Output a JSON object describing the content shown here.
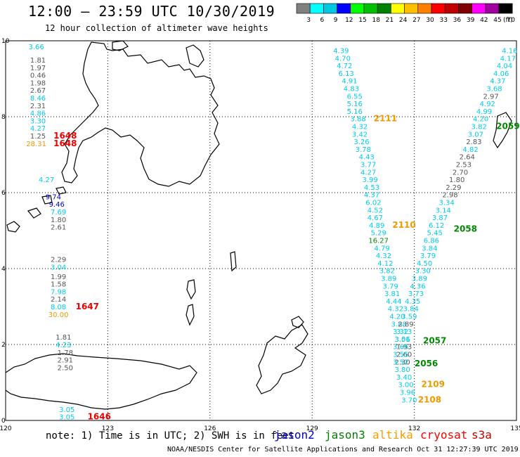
{
  "title": "12:00 – 23:59 UTC 10/30/2019",
  "subtitle": "12 hour collection of altimeter wave heights",
  "legend": {
    "unit": "(ft)",
    "ticks": [
      "3",
      "6",
      "9",
      "12",
      "15",
      "18",
      "21",
      "24",
      "27",
      "30",
      "33",
      "36",
      "39",
      "42",
      "45",
      "70"
    ],
    "colors": [
      "#808080",
      "#00ffff",
      "#00c8e0",
      "#0000ff",
      "#00ff00",
      "#00c000",
      "#008000",
      "#ffff00",
      "#ffc000",
      "#ff8000",
      "#ff0000",
      "#c00000",
      "#800000",
      "#ff00ff",
      "#a000a0",
      "#000000"
    ]
  },
  "axes": {
    "x_ticks": [
      "120",
      "123",
      "126",
      "129",
      "132",
      "135"
    ],
    "y_ticks": [
      "10",
      "8",
      "6",
      "4",
      "2",
      "0"
    ]
  },
  "note": "note:  1) Time is in UTC; 2) SWH is in feet",
  "satellites": [
    {
      "name": "jason2",
      "color": "#0000cc"
    },
    {
      "name": "jason3",
      "color": "#008000"
    },
    {
      "name": "altika",
      "color": "#ff9900"
    },
    {
      "name": "cryosat",
      "color": "#ff0000"
    },
    {
      "name": "s3a",
      "color": "#cc0000"
    }
  ],
  "credit": "NOAA/NESDIS Center for Satellite Applications and Research    Oct 31 12:27:39 UTC 2019",
  "track_colors": {
    "cyan": "#00ccee",
    "gray": "#555555",
    "blue": "#0000cc",
    "orange": "#ee9900",
    "red": "#ee0000",
    "green": "#008800",
    "darkgray": "#444444"
  },
  "readings": [
    {
      "v": "3.66",
      "c": "cyan",
      "lon": 120.9,
      "lat": 9.85
    },
    {
      "v": "1.81",
      "c": "gray",
      "lon": 120.95,
      "lat": 9.5
    },
    {
      "v": "1.97",
      "c": "gray",
      "lon": 120.95,
      "lat": 9.3
    },
    {
      "v": "0.46",
      "c": "gray",
      "lon": 120.95,
      "lat": 9.1
    },
    {
      "v": "1.98",
      "c": "gray",
      "lon": 120.95,
      "lat": 8.9
    },
    {
      "v": "2.67",
      "c": "gray",
      "lon": 120.95,
      "lat": 8.7
    },
    {
      "v": "8.46",
      "c": "cyan",
      "lon": 120.95,
      "lat": 8.5
    },
    {
      "v": "2.31",
      "c": "gray",
      "lon": 120.95,
      "lat": 8.3
    },
    {
      "v": "4.86",
      "c": "cyan",
      "lon": 120.95,
      "lat": 8.1
    },
    {
      "v": "3.30",
      "c": "cyan",
      "lon": 120.95,
      "lat": 7.9
    },
    {
      "v": "4.27",
      "c": "cyan",
      "lon": 120.95,
      "lat": 7.7
    },
    {
      "v": "1.25",
      "c": "gray",
      "lon": 120.95,
      "lat": 7.5
    },
    {
      "v": "28.31",
      "c": "orange",
      "lon": 120.9,
      "lat": 7.3
    },
    {
      "v": "1648",
      "c": "red",
      "lon": 121.75,
      "lat": 7.5,
      "bold": true
    },
    {
      "v": "1648",
      "c": "red",
      "lon": 121.75,
      "lat": 7.3,
      "bold": true
    },
    {
      "v": "4.27",
      "c": "cyan",
      "lon": 121.2,
      "lat": 6.35
    },
    {
      "v": "9.74",
      "c": "blue",
      "lon": 121.4,
      "lat": 5.9
    },
    {
      "v": "9.46",
      "c": "blue",
      "lon": 121.5,
      "lat": 5.7
    },
    {
      "v": "7.69",
      "c": "cyan",
      "lon": 121.55,
      "lat": 5.5
    },
    {
      "v": "1.80",
      "c": "gray",
      "lon": 121.55,
      "lat": 5.3
    },
    {
      "v": "2.61",
      "c": "gray",
      "lon": 121.55,
      "lat": 5.1
    },
    {
      "v": "2.29",
      "c": "gray",
      "lon": 121.55,
      "lat": 4.25
    },
    {
      "v": "3.04",
      "c": "cyan",
      "lon": 121.55,
      "lat": 4.05
    },
    {
      "v": "1.99",
      "c": "gray",
      "lon": 121.55,
      "lat": 3.8
    },
    {
      "v": "1.58",
      "c": "gray",
      "lon": 121.55,
      "lat": 3.6
    },
    {
      "v": "7.98",
      "c": "cyan",
      "lon": 121.55,
      "lat": 3.4
    },
    {
      "v": "2.14",
      "c": "gray",
      "lon": 121.55,
      "lat": 3.2
    },
    {
      "v": "8.08",
      "c": "cyan",
      "lon": 121.55,
      "lat": 3.0
    },
    {
      "v": "30.00",
      "c": "orange",
      "lon": 121.55,
      "lat": 2.8
    },
    {
      "v": "1647",
      "c": "red",
      "lon": 122.4,
      "lat": 3.0,
      "bold": true
    },
    {
      "v": "1.81",
      "c": "gray",
      "lon": 121.7,
      "lat": 2.2
    },
    {
      "v": "4.23",
      "c": "cyan",
      "lon": 121.7,
      "lat": 2.0
    },
    {
      "v": "1.78",
      "c": "gray",
      "lon": 121.75,
      "lat": 1.8
    },
    {
      "v": "2.91",
      "c": "gray",
      "lon": 121.75,
      "lat": 1.6
    },
    {
      "v": "2.50",
      "c": "gray",
      "lon": 121.75,
      "lat": 1.4
    },
    {
      "v": "3.05",
      "c": "cyan",
      "lon": 121.8,
      "lat": 0.3
    },
    {
      "v": "3.05",
      "c": "cyan",
      "lon": 121.8,
      "lat": 0.1
    },
    {
      "v": "1646",
      "c": "red",
      "lon": 122.75,
      "lat": 0.1,
      "bold": true
    },
    {
      "v": "4.39",
      "c": "cyan",
      "lon": 129.85,
      "lat": 9.75
    },
    {
      "v": "4.70",
      "c": "cyan",
      "lon": 129.9,
      "lat": 9.55
    },
    {
      "v": "4.72",
      "c": "cyan",
      "lon": 129.95,
      "lat": 9.35
    },
    {
      "v": "6.13",
      "c": "cyan",
      "lon": 130.0,
      "lat": 9.15
    },
    {
      "v": "4.91",
      "c": "cyan",
      "lon": 130.1,
      "lat": 8.95
    },
    {
      "v": "4.83",
      "c": "cyan",
      "lon": 130.15,
      "lat": 8.75
    },
    {
      "v": "6.55",
      "c": "cyan",
      "lon": 130.25,
      "lat": 8.55
    },
    {
      "v": "5.16",
      "c": "cyan",
      "lon": 130.25,
      "lat": 8.35
    },
    {
      "v": "5.16",
      "c": "cyan",
      "lon": 130.25,
      "lat": 8.15
    },
    {
      "v": "3.88",
      "c": "cyan",
      "lon": 130.35,
      "lat": 7.95
    },
    {
      "v": "2111",
      "c": "orange",
      "lon": 131.15,
      "lat": 7.95,
      "bold": true
    },
    {
      "v": "4.32",
      "c": "cyan",
      "lon": 130.4,
      "lat": 7.75
    },
    {
      "v": "3.42",
      "c": "cyan",
      "lon": 130.4,
      "lat": 7.55
    },
    {
      "v": "3.26",
      "c": "cyan",
      "lon": 130.45,
      "lat": 7.35
    },
    {
      "v": "3.78",
      "c": "cyan",
      "lon": 130.5,
      "lat": 7.15
    },
    {
      "v": "4.43",
      "c": "cyan",
      "lon": 130.6,
      "lat": 6.95
    },
    {
      "v": "3.77",
      "c": "cyan",
      "lon": 130.65,
      "lat": 6.75
    },
    {
      "v": "4.27",
      "c": "cyan",
      "lon": 130.65,
      "lat": 6.55
    },
    {
      "v": "3.99",
      "c": "cyan",
      "lon": 130.7,
      "lat": 6.35
    },
    {
      "v": "4.53",
      "c": "cyan",
      "lon": 130.75,
      "lat": 6.15
    },
    {
      "v": "4.37",
      "c": "cyan",
      "lon": 130.75,
      "lat": 5.95
    },
    {
      "v": "6.02",
      "c": "cyan",
      "lon": 130.8,
      "lat": 5.75
    },
    {
      "v": "4.52",
      "c": "cyan",
      "lon": 130.85,
      "lat": 5.55
    },
    {
      "v": "4.67",
      "c": "cyan",
      "lon": 130.85,
      "lat": 5.35
    },
    {
      "v": "4.89",
      "c": "cyan",
      "lon": 130.9,
      "lat": 5.15
    },
    {
      "v": "2110",
      "c": "orange",
      "lon": 131.7,
      "lat": 5.15,
      "bold": true
    },
    {
      "v": "5.29",
      "c": "cyan",
      "lon": 130.95,
      "lat": 4.95
    },
    {
      "v": "16.27",
      "c": "green",
      "lon": 130.95,
      "lat": 4.75
    },
    {
      "v": "4.79",
      "c": "cyan",
      "lon": 131.05,
      "lat": 4.55
    },
    {
      "v": "4.32",
      "c": "cyan",
      "lon": 131.1,
      "lat": 4.35
    },
    {
      "v": "4.12",
      "c": "cyan",
      "lon": 131.15,
      "lat": 4.15
    },
    {
      "v": "3.82",
      "c": "cyan",
      "lon": 131.2,
      "lat": 3.95
    },
    {
      "v": "3.89",
      "c": "cyan",
      "lon": 131.25,
      "lat": 3.75
    },
    {
      "v": "3.79",
      "c": "cyan",
      "lon": 131.3,
      "lat": 3.55
    },
    {
      "v": "3.81",
      "c": "cyan",
      "lon": 131.35,
      "lat": 3.35
    },
    {
      "v": "4.44",
      "c": "cyan",
      "lon": 131.4,
      "lat": 3.15
    },
    {
      "v": "4.32",
      "c": "cyan",
      "lon": 131.45,
      "lat": 2.95
    },
    {
      "v": "4.20",
      "c": "cyan",
      "lon": 131.5,
      "lat": 2.75
    },
    {
      "v": "3.88",
      "c": "cyan",
      "lon": 131.55,
      "lat": 2.55
    },
    {
      "v": "3.32",
      "c": "cyan",
      "lon": 131.6,
      "lat": 2.35
    },
    {
      "v": "3.01",
      "c": "cyan",
      "lon": 131.65,
      "lat": 2.15
    },
    {
      "v": "1.93",
      "c": "gray",
      "lon": 131.7,
      "lat": 1.95
    },
    {
      "v": "2.60",
      "c": "gray",
      "lon": 131.7,
      "lat": 1.75
    },
    {
      "v": "2.30",
      "c": "gray",
      "lon": 131.65,
      "lat": 1.55
    },
    {
      "v": "2056",
      "c": "green",
      "lon": 132.35,
      "lat": 1.5,
      "bold": true
    },
    {
      "v": "4.16",
      "c": "cyan",
      "lon": 134.8,
      "lat": 9.75
    },
    {
      "v": "4.17",
      "c": "cyan",
      "lon": 134.75,
      "lat": 9.55
    },
    {
      "v": "4.04",
      "c": "cyan",
      "lon": 134.65,
      "lat": 9.35
    },
    {
      "v": "4.06",
      "c": "cyan",
      "lon": 134.55,
      "lat": 9.15
    },
    {
      "v": "4.37",
      "c": "cyan",
      "lon": 134.45,
      "lat": 8.95
    },
    {
      "v": "3.68",
      "c": "cyan",
      "lon": 134.35,
      "lat": 8.75
    },
    {
      "v": "2.97",
      "c": "gray",
      "lon": 134.25,
      "lat": 8.55
    },
    {
      "v": "4.92",
      "c": "cyan",
      "lon": 134.15,
      "lat": 8.35
    },
    {
      "v": "4.99",
      "c": "cyan",
      "lon": 134.05,
      "lat": 8.15
    },
    {
      "v": "4.20",
      "c": "cyan",
      "lon": 133.95,
      "lat": 7.95
    },
    {
      "v": "3.82",
      "c": "cyan",
      "lon": 133.9,
      "lat": 7.75
    },
    {
      "v": "2059",
      "c": "green",
      "lon": 134.75,
      "lat": 7.75,
      "bold": true
    },
    {
      "v": "3.07",
      "c": "cyan",
      "lon": 133.8,
      "lat": 7.55
    },
    {
      "v": "2.83",
      "c": "gray",
      "lon": 133.75,
      "lat": 7.35
    },
    {
      "v": "4.82",
      "c": "cyan",
      "lon": 133.65,
      "lat": 7.15
    },
    {
      "v": "2.64",
      "c": "gray",
      "lon": 133.55,
      "lat": 6.95
    },
    {
      "v": "2.53",
      "c": "gray",
      "lon": 133.45,
      "lat": 6.75
    },
    {
      "v": "2.70",
      "c": "gray",
      "lon": 133.35,
      "lat": 6.55
    },
    {
      "v": "1.80",
      "c": "gray",
      "lon": 133.25,
      "lat": 6.35
    },
    {
      "v": "2.29",
      "c": "gray",
      "lon": 133.15,
      "lat": 6.15
    },
    {
      "v": "2.98",
      "c": "gray",
      "lon": 133.05,
      "lat": 5.95
    },
    {
      "v": "3.34",
      "c": "cyan",
      "lon": 132.95,
      "lat": 5.75
    },
    {
      "v": "3.14",
      "c": "cyan",
      "lon": 132.85,
      "lat": 5.55
    },
    {
      "v": "3.87",
      "c": "cyan",
      "lon": 132.75,
      "lat": 5.35
    },
    {
      "v": "6.12",
      "c": "cyan",
      "lon": 132.65,
      "lat": 5.15
    },
    {
      "v": "2058",
      "c": "green",
      "lon": 133.5,
      "lat": 5.05,
      "bold": true
    },
    {
      "v": "5.45",
      "c": "cyan",
      "lon": 132.6,
      "lat": 4.95
    },
    {
      "v": "6.86",
      "c": "cyan",
      "lon": 132.5,
      "lat": 4.75
    },
    {
      "v": "3.84",
      "c": "cyan",
      "lon": 132.45,
      "lat": 4.55
    },
    {
      "v": "3.79",
      "c": "cyan",
      "lon": 132.4,
      "lat": 4.35
    },
    {
      "v": "4.50",
      "c": "cyan",
      "lon": 132.3,
      "lat": 4.15
    },
    {
      "v": "3.30",
      "c": "cyan",
      "lon": 132.25,
      "lat": 3.95
    },
    {
      "v": "3.89",
      "c": "cyan",
      "lon": 132.15,
      "lat": 3.75
    },
    {
      "v": "4.36",
      "c": "cyan",
      "lon": 132.1,
      "lat": 3.55
    },
    {
      "v": "3.73",
      "c": "cyan",
      "lon": 132.05,
      "lat": 3.35
    },
    {
      "v": "4.35",
      "c": "cyan",
      "lon": 131.95,
      "lat": 3.15
    },
    {
      "v": "3.84",
      "c": "cyan",
      "lon": 131.9,
      "lat": 2.95
    },
    {
      "v": "3.59",
      "c": "cyan",
      "lon": 131.85,
      "lat": 2.75
    },
    {
      "v": "2.89",
      "c": "gray",
      "lon": 131.75,
      "lat": 2.55
    },
    {
      "v": "3.13",
      "c": "cyan",
      "lon": 131.7,
      "lat": 2.35
    },
    {
      "v": "3.56",
      "c": "cyan",
      "lon": 131.65,
      "lat": 2.15
    },
    {
      "v": "2057",
      "c": "green",
      "lon": 132.6,
      "lat": 2.1,
      "bold": true
    },
    {
      "v": "3.65",
      "c": "cyan",
      "lon": 131.6,
      "lat": 1.95
    },
    {
      "v": "3.55",
      "c": "cyan",
      "lon": 131.6,
      "lat": 1.75
    },
    {
      "v": "3.52",
      "c": "cyan",
      "lon": 131.6,
      "lat": 1.55
    },
    {
      "v": "3.80",
      "c": "cyan",
      "lon": 131.65,
      "lat": 1.35
    },
    {
      "v": "3.40",
      "c": "cyan",
      "lon": 131.7,
      "lat": 1.15
    },
    {
      "v": "3.00",
      "c": "cyan",
      "lon": 131.75,
      "lat": 0.95
    },
    {
      "v": "2109",
      "c": "orange",
      "lon": 132.55,
      "lat": 0.95,
      "bold": true
    },
    {
      "v": "3.96",
      "c": "cyan",
      "lon": 131.8,
      "lat": 0.75
    },
    {
      "v": "3.70",
      "c": "cyan",
      "lon": 131.85,
      "lat": 0.55
    },
    {
      "v": "2108",
      "c": "orange",
      "lon": 132.45,
      "lat": 0.55,
      "bold": true
    }
  ]
}
